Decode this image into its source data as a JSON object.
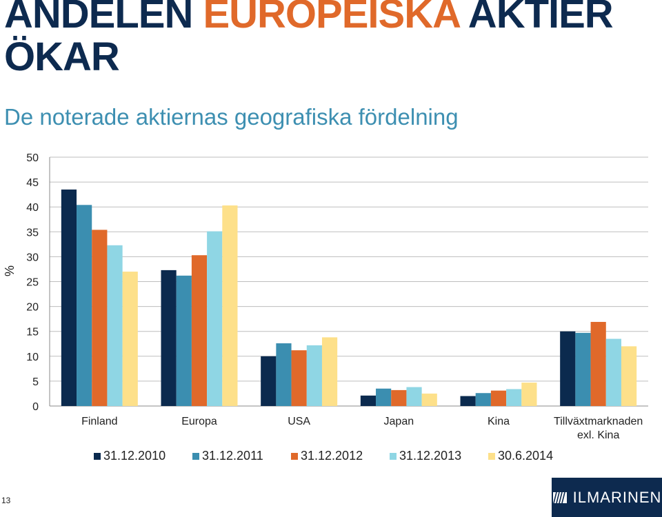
{
  "header": {
    "title_part1": "ANDELEN ",
    "title_accent": "EUROPEISKA",
    "title_part2": " AKTIER ÖKAR",
    "subtitle": "De noterade aktiernas geografiska fördelning"
  },
  "chart_data": {
    "type": "bar",
    "ylabel": "%",
    "ylim": [
      0,
      50
    ],
    "yticks": [
      0,
      5,
      10,
      15,
      20,
      25,
      30,
      35,
      40,
      45,
      50
    ],
    "grid": true,
    "legend_position": "bottom",
    "categories": [
      "Finland",
      "Europa",
      "USA",
      "Japan",
      "Kina",
      "Tillväxtmarknaden exl. Kina"
    ],
    "series": [
      {
        "name": "31.12.2010",
        "color": "#0b2a4e",
        "values": [
          43.5,
          27.3,
          10.0,
          2.1,
          2.0,
          15.0
        ]
      },
      {
        "name": "31.12.2011",
        "color": "#3b8eb0",
        "values": [
          40.4,
          26.2,
          12.6,
          3.5,
          2.6,
          14.7
        ]
      },
      {
        "name": "31.12.2012",
        "color": "#e0692a",
        "values": [
          35.4,
          30.3,
          11.2,
          3.2,
          3.1,
          16.9
        ]
      },
      {
        "name": "31.12.2013",
        "color": "#8fd6e4",
        "values": [
          32.3,
          35.1,
          12.2,
          3.8,
          3.4,
          13.5
        ]
      },
      {
        "name": "30.6.2014",
        "color": "#fde08a",
        "values": [
          27.0,
          40.3,
          13.8,
          2.5,
          4.7,
          12.0
        ]
      }
    ]
  },
  "footer": {
    "page_number": "13",
    "logo_text": "ILMARINEN",
    "logo_icon": "ilmarinen-logo-icon"
  }
}
